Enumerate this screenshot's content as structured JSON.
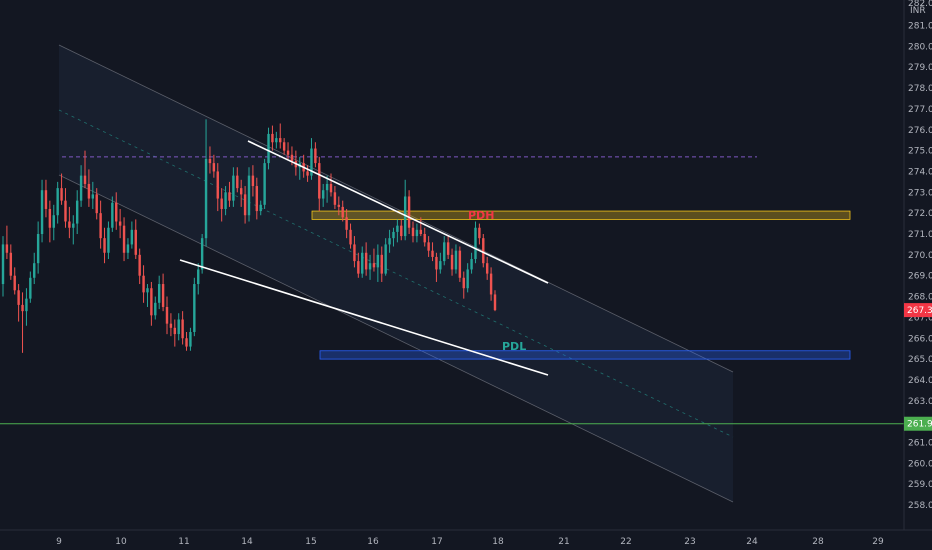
{
  "chart_data": {
    "type": "candlestick",
    "currency": "INR",
    "y_axis": {
      "ticks": [
        "281.00",
        "280.00",
        "279.00",
        "278.00",
        "277.00",
        "276.00",
        "275.00",
        "274.00",
        "273.00",
        "272.00",
        "271.00",
        "270.00",
        "269.00",
        "268.00",
        "267.00",
        "266.00",
        "265.00",
        "264.00",
        "263.00",
        "262.00",
        "261.00",
        "260.00",
        "259.00",
        "258.00"
      ],
      "top_tick_partial": "282.00",
      "range": [
        257.6,
        282.6
      ],
      "side": "right"
    },
    "x_axis": {
      "ticks": [
        "9",
        "10",
        "11",
        "14",
        "15",
        "16",
        "17",
        "18",
        "21",
        "22",
        "23",
        "24",
        "28",
        "29"
      ]
    },
    "price_labels": [
      {
        "text": "267.35",
        "value": 267.35,
        "color": "#f23645"
      },
      {
        "text": "261.90",
        "value": 261.9,
        "color": "#4caf50"
      }
    ],
    "horizontal_lines": [
      {
        "name": "support-line",
        "value": 261.9,
        "color": "#4caf50",
        "style": "solid"
      },
      {
        "name": "purple-dashed-line",
        "value": 274.7,
        "color": "#7e57c2",
        "style": "dashed"
      }
    ],
    "zones": [
      {
        "name": "pdh-zone",
        "from": 271.7,
        "to": 272.1,
        "color": "#f5c518"
      },
      {
        "name": "pdl-zone",
        "from": 265.0,
        "to": 265.4,
        "color": "#2962ff"
      }
    ],
    "annotations": [
      {
        "text": "PDH",
        "color": "#f23645"
      },
      {
        "text": "PDL",
        "color": "#26a69a"
      }
    ],
    "colors": {
      "up": "#26a69a",
      "down": "#ef5350",
      "background": "#131722",
      "channel": "#9598a1",
      "trendline": "#ffffff"
    },
    "candles": [
      [
        268.6,
        270.9,
        268.0,
        270.5
      ],
      [
        270.5,
        271.4,
        269.8,
        270.1
      ],
      [
        270.1,
        270.5,
        268.8,
        269.0
      ],
      [
        269.0,
        269.4,
        268.1,
        268.3
      ],
      [
        268.3,
        268.6,
        266.8,
        267.6
      ],
      [
        267.6,
        268.2,
        265.3,
        267.3
      ],
      [
        267.3,
        268.4,
        266.6,
        267.9
      ],
      [
        267.9,
        269.2,
        267.7,
        268.9
      ],
      [
        268.9,
        270.1,
        268.6,
        269.6
      ],
      [
        269.6,
        271.6,
        269.1,
        271.0
      ],
      [
        271.0,
        273.6,
        270.6,
        273.1
      ],
      [
        273.1,
        273.6,
        271.8,
        272.2
      ],
      [
        272.2,
        272.6,
        270.6,
        271.3
      ],
      [
        271.3,
        272.4,
        270.7,
        271.9
      ],
      [
        271.9,
        273.5,
        271.5,
        273.2
      ],
      [
        273.2,
        273.9,
        272.4,
        272.6
      ],
      [
        272.6,
        273.2,
        271.3,
        271.6
      ],
      [
        271.6,
        272.3,
        270.8,
        271.3
      ],
      [
        271.3,
        271.9,
        270.5,
        271.5
      ],
      [
        271.5,
        273.1,
        271.0,
        272.6
      ],
      [
        272.6,
        274.3,
        272.3,
        273.8
      ],
      [
        273.8,
        275.0,
        273.2,
        273.4
      ],
      [
        273.4,
        274.1,
        272.3,
        272.7
      ],
      [
        272.7,
        273.5,
        272.2,
        272.9
      ],
      [
        272.9,
        273.2,
        271.7,
        272.0
      ],
      [
        272.0,
        272.6,
        270.3,
        270.8
      ],
      [
        270.8,
        271.3,
        269.6,
        270.1
      ],
      [
        270.1,
        271.6,
        269.8,
        271.3
      ],
      [
        271.3,
        272.8,
        271.1,
        272.5
      ],
      [
        272.5,
        273.0,
        271.2,
        271.6
      ],
      [
        271.6,
        272.2,
        270.8,
        271.4
      ],
      [
        271.4,
        271.8,
        269.7,
        270.1
      ],
      [
        270.1,
        270.8,
        269.8,
        270.5
      ],
      [
        270.5,
        271.6,
        270.3,
        271.2
      ],
      [
        271.2,
        271.7,
        269.8,
        270.0
      ],
      [
        270.0,
        270.3,
        268.6,
        269.0
      ],
      [
        269.0,
        269.5,
        267.7,
        268.2
      ],
      [
        268.2,
        268.6,
        267.5,
        268.4
      ],
      [
        268.4,
        268.7,
        266.6,
        267.1
      ],
      [
        267.1,
        268.0,
        266.9,
        267.7
      ],
      [
        267.7,
        269.0,
        267.4,
        268.6
      ],
      [
        268.6,
        269.1,
        267.3,
        267.5
      ],
      [
        267.5,
        268.0,
        266.2,
        266.7
      ],
      [
        266.7,
        267.2,
        266.1,
        266.5
      ],
      [
        266.5,
        266.9,
        265.6,
        266.2
      ],
      [
        266.2,
        267.2,
        265.9,
        266.9
      ],
      [
        266.9,
        267.3,
        265.7,
        266.0
      ],
      [
        266.0,
        266.3,
        265.4,
        265.6
      ],
      [
        265.6,
        266.5,
        265.4,
        266.3
      ],
      [
        266.3,
        268.9,
        266.1,
        268.6
      ],
      [
        268.6,
        269.6,
        268.1,
        269.3
      ],
      [
        269.3,
        271.0,
        269.1,
        270.8
      ],
      [
        270.8,
        276.5,
        270.4,
        274.6
      ],
      [
        274.6,
        275.2,
        273.9,
        274.4
      ],
      [
        274.4,
        274.8,
        273.7,
        274.0
      ],
      [
        274.0,
        274.4,
        272.1,
        272.7
      ],
      [
        272.7,
        273.2,
        271.6,
        272.2
      ],
      [
        272.2,
        273.3,
        271.9,
        273.0
      ],
      [
        273.0,
        273.5,
        272.3,
        272.6
      ],
      [
        272.6,
        274.2,
        272.3,
        273.8
      ],
      [
        273.8,
        274.2,
        273.0,
        273.2
      ],
      [
        273.2,
        273.6,
        272.3,
        272.9
      ],
      [
        272.9,
        273.3,
        271.5,
        271.9
      ],
      [
        271.9,
        274.2,
        271.6,
        273.8
      ],
      [
        273.8,
        274.3,
        272.8,
        273.3
      ],
      [
        273.3,
        273.7,
        271.7,
        272.1
      ],
      [
        272.1,
        272.6,
        271.9,
        272.4
      ],
      [
        272.4,
        274.6,
        272.2,
        274.4
      ],
      [
        274.4,
        276.1,
        274.1,
        275.8
      ],
      [
        275.8,
        276.2,
        275.0,
        275.4
      ],
      [
        275.4,
        275.9,
        275.1,
        275.6
      ],
      [
        275.6,
        276.3,
        275.1,
        275.4
      ],
      [
        275.4,
        275.6,
        274.8,
        275.0
      ],
      [
        275.0,
        275.4,
        274.6,
        274.8
      ],
      [
        274.8,
        275.2,
        274.3,
        274.5
      ],
      [
        274.5,
        275.0,
        273.8,
        274.2
      ],
      [
        274.2,
        274.7,
        273.6,
        274.4
      ],
      [
        274.4,
        274.8,
        273.7,
        274.0
      ],
      [
        274.0,
        274.3,
        273.5,
        273.8
      ],
      [
        273.8,
        275.6,
        273.6,
        275.1
      ],
      [
        275.1,
        275.4,
        274.2,
        274.4
      ],
      [
        274.4,
        274.7,
        272.1,
        272.7
      ],
      [
        272.7,
        273.4,
        272.3,
        273.1
      ],
      [
        273.1,
        273.8,
        272.5,
        273.4
      ],
      [
        273.4,
        273.9,
        272.8,
        273.0
      ],
      [
        273.0,
        273.3,
        272.2,
        272.4
      ],
      [
        272.4,
        272.8,
        271.9,
        272.3
      ],
      [
        272.3,
        272.6,
        271.6,
        271.8
      ],
      [
        271.8,
        272.2,
        270.8,
        271.2
      ],
      [
        271.2,
        271.5,
        270.3,
        270.5
      ],
      [
        270.5,
        270.9,
        269.4,
        269.7
      ],
      [
        269.7,
        270.1,
        268.9,
        269.1
      ],
      [
        269.1,
        270.4,
        268.9,
        270.1
      ],
      [
        270.1,
        270.6,
        269.0,
        269.3
      ],
      [
        269.3,
        270.0,
        268.8,
        269.6
      ],
      [
        269.6,
        270.3,
        269.2,
        269.4
      ],
      [
        269.4,
        270.5,
        268.7,
        270.0
      ],
      [
        270.0,
        270.4,
        268.7,
        269.1
      ],
      [
        269.1,
        270.8,
        269.0,
        270.5
      ],
      [
        270.5,
        271.2,
        270.1,
        270.8
      ],
      [
        270.8,
        271.3,
        270.4,
        271.1
      ],
      [
        271.1,
        271.7,
        270.6,
        271.4
      ],
      [
        271.4,
        271.7,
        270.7,
        270.9
      ],
      [
        270.9,
        273.6,
        270.7,
        272.8
      ],
      [
        272.8,
        273.1,
        271.0,
        271.3
      ],
      [
        271.3,
        271.6,
        270.6,
        270.9
      ],
      [
        270.9,
        271.5,
        270.6,
        271.2
      ],
      [
        271.2,
        271.8,
        270.9,
        271.0
      ],
      [
        271.0,
        271.3,
        270.4,
        270.6
      ],
      [
        270.6,
        270.9,
        269.9,
        270.2
      ],
      [
        270.2,
        270.6,
        269.7,
        269.9
      ],
      [
        269.9,
        270.1,
        268.7,
        269.3
      ],
      [
        269.3,
        270.1,
        269.1,
        269.7
      ],
      [
        269.7,
        270.9,
        269.5,
        270.6
      ],
      [
        270.6,
        270.9,
        269.8,
        270.0
      ],
      [
        270.0,
        270.3,
        269.0,
        269.3
      ],
      [
        269.3,
        270.5,
        269.1,
        270.2
      ],
      [
        270.2,
        270.4,
        268.7,
        268.9
      ],
      [
        268.9,
        269.2,
        267.9,
        268.4
      ],
      [
        268.4,
        269.6,
        268.2,
        269.3
      ],
      [
        269.3,
        270.1,
        269.1,
        269.8
      ],
      [
        269.8,
        271.6,
        269.6,
        271.3
      ],
      [
        271.3,
        271.5,
        270.5,
        270.8
      ],
      [
        270.8,
        271.0,
        269.4,
        269.6
      ],
      [
        269.6,
        269.9,
        268.8,
        269.1
      ],
      [
        269.1,
        269.4,
        267.8,
        268.1
      ],
      [
        268.1,
        268.3,
        267.3,
        267.35
      ]
    ]
  }
}
